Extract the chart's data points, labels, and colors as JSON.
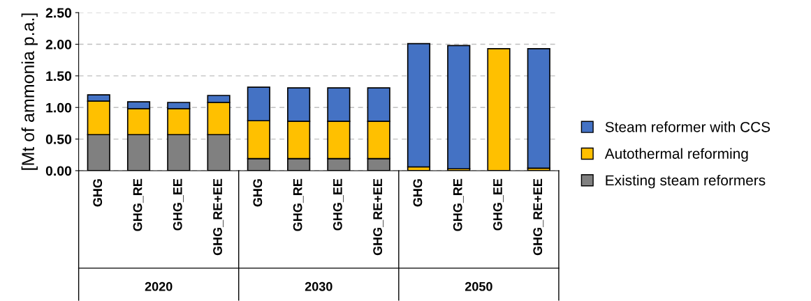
{
  "chart_data": {
    "type": "bar",
    "stacked": true,
    "ylabel": "[Mt of ammonia p.a.]",
    "categories": [
      "GHG",
      "GHG_RE",
      "GHG_EE",
      "GHG_RE+EE",
      "GHG",
      "GHG_RE",
      "GHG_EE",
      "GHG_RE+EE",
      "GHG",
      "GHG_RE",
      "GHG_EE",
      "GHG_RE+EE"
    ],
    "series": [
      {
        "name": "Existing steam reformers",
        "color": "#808080",
        "values": [
          0.57,
          0.57,
          0.57,
          0.57,
          0.19,
          0.19,
          0.19,
          0.19,
          0,
          0,
          0,
          0
        ]
      },
      {
        "name": "Autothermal reforming",
        "color": "#ffc000",
        "values": [
          0.53,
          0.41,
          0.41,
          0.51,
          0.6,
          0.59,
          0.59,
          0.59,
          0.06,
          0.03,
          1.93,
          0.04
        ]
      },
      {
        "name": "Steam reformer with CCS",
        "color": "#4472c4",
        "values": [
          0.1,
          0.11,
          0.1,
          0.11,
          0.53,
          0.53,
          0.53,
          0.53,
          1.95,
          1.95,
          0,
          1.89
        ]
      }
    ],
    "annotations": [
      "2020",
      "2030",
      "2050"
    ],
    "ylim": [
      0,
      2.5
    ],
    "yticks": [
      {
        "value": 0,
        "label": "0.00"
      },
      {
        "value": 0.5,
        "label": "0.50"
      },
      {
        "value": 1,
        "label": "1.00"
      },
      {
        "value": 1.5,
        "label": "1.50"
      },
      {
        "value": 2,
        "label": "2.00"
      },
      {
        "value": 2.5,
        "label": "2.50"
      }
    ],
    "grid": "y",
    "legend": "right"
  }
}
